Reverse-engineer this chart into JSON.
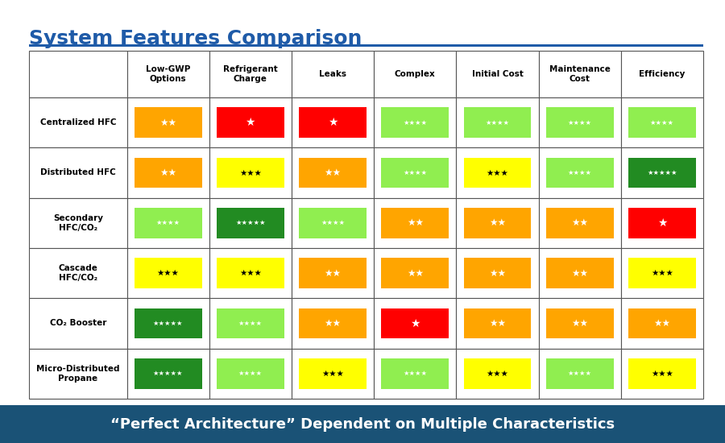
{
  "title": "System Features Comparison",
  "footer": "“Perfect Architecture” Dependent on Multiple Characteristics",
  "columns": [
    "Low-GWP\nOptions",
    "Refrigerant\nCharge",
    "Leaks",
    "Complex",
    "Initial Cost",
    "Maintenance\nCost",
    "Efficiency"
  ],
  "rows": [
    "Centralized HFC",
    "Distributed HFC",
    "Secondary\nHFC/CO₂",
    "Cascade\nHFC/CO₂",
    "CO₂ Booster",
    "Micro-Distributed\nPropane"
  ],
  "title_color": "#1F5BA8",
  "header_bg": "#ffffff",
  "footer_bg": "#1a5276",
  "footer_text_color": "#ffffff",
  "grid_line_color": "#555555",
  "table_bg": "#ffffff",
  "cell_data": [
    [
      {
        "color": "#FFA500",
        "stars": 2,
        "star_color": "white"
      },
      {
        "color": "#FF0000",
        "stars": 1,
        "star_color": "white"
      },
      {
        "color": "#FF0000",
        "stars": 1,
        "star_color": "white"
      },
      {
        "color": "#90EE50",
        "stars": 4,
        "star_color": "white"
      },
      {
        "color": "#90EE50",
        "stars": 4,
        "star_color": "white"
      },
      {
        "color": "#90EE50",
        "stars": 4,
        "star_color": "white"
      },
      {
        "color": "#90EE50",
        "stars": 4,
        "star_color": "white"
      }
    ],
    [
      {
        "color": "#FFA500",
        "stars": 2,
        "star_color": "white"
      },
      {
        "color": "#FFFF00",
        "stars": 3,
        "star_color": "black"
      },
      {
        "color": "#FFA500",
        "stars": 2,
        "star_color": "white"
      },
      {
        "color": "#90EE50",
        "stars": 4,
        "star_color": "white"
      },
      {
        "color": "#FFFF00",
        "stars": 3,
        "star_color": "black"
      },
      {
        "color": "#90EE50",
        "stars": 4,
        "star_color": "white"
      },
      {
        "color": "#228B22",
        "stars": 5,
        "star_color": "white"
      }
    ],
    [
      {
        "color": "#90EE50",
        "stars": 4,
        "star_color": "white"
      },
      {
        "color": "#228B22",
        "stars": 5,
        "star_color": "white"
      },
      {
        "color": "#90EE50",
        "stars": 4,
        "star_color": "white"
      },
      {
        "color": "#FFA500",
        "stars": 2,
        "star_color": "white"
      },
      {
        "color": "#FFA500",
        "stars": 2,
        "star_color": "white"
      },
      {
        "color": "#FFA500",
        "stars": 2,
        "star_color": "white"
      },
      {
        "color": "#FF0000",
        "stars": 1,
        "star_color": "white"
      }
    ],
    [
      {
        "color": "#FFFF00",
        "stars": 3,
        "star_color": "black"
      },
      {
        "color": "#FFFF00",
        "stars": 3,
        "star_color": "black"
      },
      {
        "color": "#FFA500",
        "stars": 2,
        "star_color": "white"
      },
      {
        "color": "#FFA500",
        "stars": 2,
        "star_color": "white"
      },
      {
        "color": "#FFA500",
        "stars": 2,
        "star_color": "white"
      },
      {
        "color": "#FFA500",
        "stars": 2,
        "star_color": "white"
      },
      {
        "color": "#FFFF00",
        "stars": 3,
        "star_color": "black"
      }
    ],
    [
      {
        "color": "#228B22",
        "stars": 5,
        "star_color": "white"
      },
      {
        "color": "#90EE50",
        "stars": 4,
        "star_color": "white"
      },
      {
        "color": "#FFA500",
        "stars": 2,
        "star_color": "white"
      },
      {
        "color": "#FF0000",
        "stars": 1,
        "star_color": "white"
      },
      {
        "color": "#FFA500",
        "stars": 2,
        "star_color": "white"
      },
      {
        "color": "#FFA500",
        "stars": 2,
        "star_color": "white"
      },
      {
        "color": "#FFA500",
        "stars": 2,
        "star_color": "white"
      }
    ],
    [
      {
        "color": "#228B22",
        "stars": 5,
        "star_color": "white"
      },
      {
        "color": "#90EE50",
        "stars": 4,
        "star_color": "white"
      },
      {
        "color": "#FFFF00",
        "stars": 3,
        "star_color": "black"
      },
      {
        "color": "#90EE50",
        "stars": 4,
        "star_color": "white"
      },
      {
        "color": "#FFFF00",
        "stars": 3,
        "star_color": "black"
      },
      {
        "color": "#90EE50",
        "stars": 4,
        "star_color": "white"
      },
      {
        "color": "#FFFF00",
        "stars": 3,
        "star_color": "black"
      }
    ]
  ]
}
